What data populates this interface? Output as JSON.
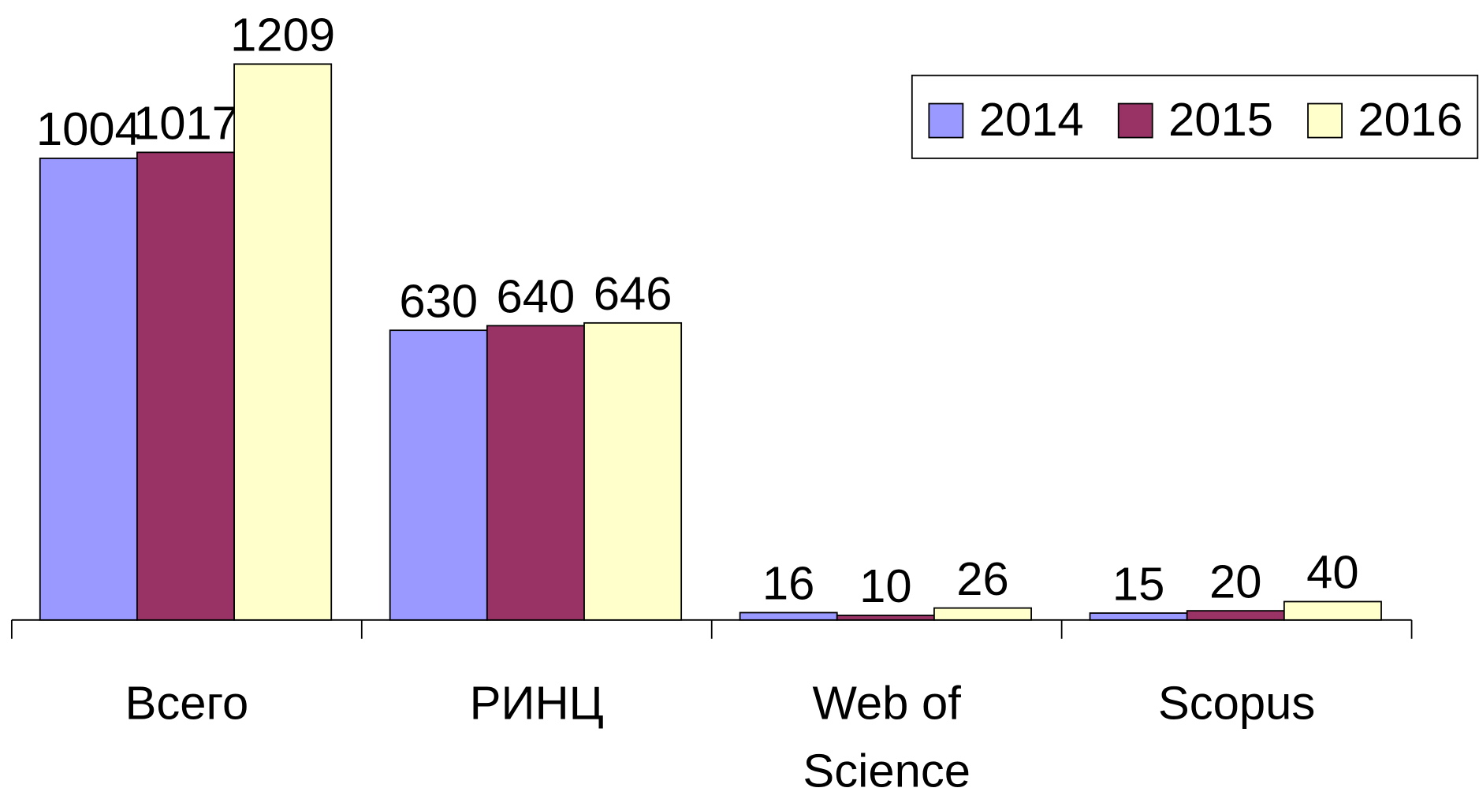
{
  "chart_data": {
    "type": "bar",
    "categories": [
      "Всего",
      "РИНЦ",
      "Web of Science",
      "Scopus"
    ],
    "series": [
      {
        "name": "2014",
        "color": "#9999ff",
        "values": [
          1004,
          630,
          16,
          15
        ]
      },
      {
        "name": "2015",
        "color": "#993366",
        "values": [
          1017,
          640,
          10,
          20
        ]
      },
      {
        "name": "2016",
        "color": "#ffffcc",
        "values": [
          1209,
          646,
          26,
          40
        ]
      }
    ],
    "legend": "top-right"
  }
}
